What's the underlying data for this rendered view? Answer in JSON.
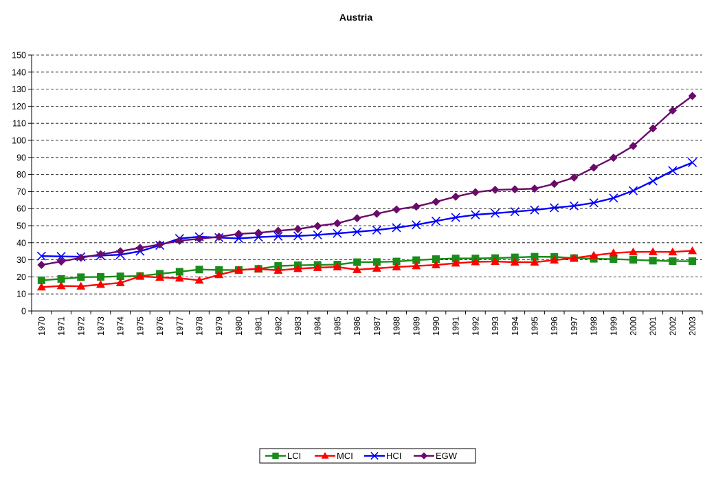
{
  "chart_data": {
    "type": "line",
    "title": "Austria",
    "xlabel": "",
    "ylabel": "",
    "ylim": [
      0,
      150
    ],
    "y_ticks": [
      "0",
      "10",
      "20",
      "30",
      "40",
      "50",
      "60",
      "70",
      "80",
      "90",
      "100",
      "110",
      "120",
      "130",
      "140",
      "150"
    ],
    "grid": "horizontal dashed",
    "legend_position": "bottom",
    "categories": [
      "1970",
      "1971",
      "1972",
      "1973",
      "1974",
      "1975",
      "1976",
      "1977",
      "1978",
      "1979",
      "1980",
      "1981",
      "1982",
      "1983",
      "1984",
      "1985",
      "1986",
      "1987",
      "1988",
      "1989",
      "1990",
      "1991",
      "1992",
      "1993",
      "1994",
      "1995",
      "1996",
      "1997",
      "1998",
      "1999",
      "2000",
      "2001",
      "2002",
      "2003"
    ],
    "series": [
      {
        "name": "LCI",
        "color": "#1a8c1a",
        "marker": "square",
        "values": [
          18,
          18.8,
          19.8,
          20,
          20.3,
          20.5,
          21.8,
          23,
          24.3,
          24,
          24,
          24.7,
          26.4,
          26.8,
          27,
          27.2,
          28.6,
          28.7,
          29,
          29.8,
          30.4,
          30.8,
          30.8,
          31,
          31.4,
          31.8,
          31.7,
          31,
          30.6,
          30.4,
          30,
          29.5,
          29.2,
          29.2
        ]
      },
      {
        "name": "MCI",
        "color": "#ff0000",
        "marker": "triangle",
        "values": [
          14,
          14.7,
          14.5,
          15.5,
          16.5,
          20.3,
          19.7,
          19.2,
          18,
          21.2,
          24,
          24.7,
          23.8,
          24.8,
          25.4,
          25.8,
          24.2,
          25,
          25.8,
          26.4,
          27,
          28,
          28.8,
          29,
          28.6,
          28.6,
          29.8,
          31,
          32.6,
          34,
          34.6,
          34.7,
          34.6,
          35.3
        ]
      },
      {
        "name": "HCI",
        "color": "#0000ff",
        "marker": "x",
        "values": [
          32.2,
          32,
          31.8,
          32.5,
          33,
          35,
          38.5,
          42.5,
          43.5,
          43,
          42.5,
          43.3,
          43.8,
          44,
          44.6,
          45.5,
          46.4,
          47.4,
          48.8,
          50.5,
          52.7,
          54.8,
          56.4,
          57.3,
          58.2,
          59.2,
          60.5,
          61.6,
          63.4,
          66.2,
          70.5,
          76.2,
          82.3,
          87
        ]
      },
      {
        "name": "EGW",
        "color": "#6a0a6a",
        "marker": "diamond",
        "values": [
          27,
          29,
          31.2,
          33.2,
          35,
          37,
          39,
          41.2,
          42.3,
          43.5,
          45.2,
          45.8,
          47,
          48,
          49.8,
          51.4,
          54.4,
          57,
          59.5,
          61.2,
          64,
          67,
          69.6,
          71,
          71.3,
          71.7,
          74.5,
          78.2,
          84,
          89.8,
          96.7,
          107,
          117.5,
          126
        ]
      }
    ]
  }
}
